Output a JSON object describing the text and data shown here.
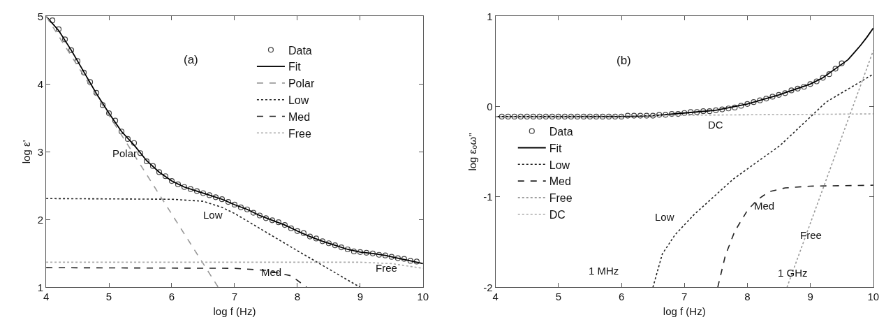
{
  "chart_data": [
    {
      "type": "line",
      "xlabel": "log f (Hz)",
      "ylabel": "log ε'",
      "xlim": [
        4,
        10
      ],
      "ylim": [
        1,
        5
      ],
      "xticks": [
        4,
        5,
        6,
        7,
        8,
        9,
        10
      ],
      "yticks": [
        1,
        2,
        3,
        4,
        5
      ],
      "legend": "top right",
      "series": [
        {
          "name": "Data",
          "type": "scatter",
          "marker": "circle",
          "color": "#444444",
          "x": [
            4.1,
            4.2,
            4.3,
            4.4,
            4.5,
            4.6,
            4.7,
            4.8,
            4.9,
            5.0,
            5.1,
            5.2,
            5.3,
            5.4,
            5.5,
            5.6,
            5.7,
            5.8,
            5.9,
            6.0,
            6.1,
            6.2,
            6.3,
            6.4,
            6.5,
            6.6,
            6.7,
            6.8,
            6.9,
            7.0,
            7.1,
            7.2,
            7.3,
            7.4,
            7.5,
            7.6,
            7.7,
            7.8,
            7.9,
            8.0,
            8.1,
            8.2,
            8.3,
            8.4,
            8.5,
            8.6,
            8.7,
            8.8,
            8.9,
            9.0,
            9.1,
            9.2,
            9.3,
            9.4,
            9.5,
            9.6,
            9.7,
            9.8,
            9.9
          ],
          "values": [
            4.94,
            4.81,
            4.66,
            4.5,
            4.34,
            4.17,
            4.03,
            3.87,
            3.69,
            3.57,
            3.46,
            3.3,
            3.19,
            3.13,
            2.98,
            2.86,
            2.79,
            2.7,
            2.64,
            2.57,
            2.52,
            2.48,
            2.45,
            2.42,
            2.39,
            2.36,
            2.33,
            2.3,
            2.26,
            2.22,
            2.18,
            2.15,
            2.1,
            2.06,
            2.02,
            1.99,
            1.96,
            1.92,
            1.87,
            1.83,
            1.8,
            1.75,
            1.72,
            1.68,
            1.65,
            1.62,
            1.59,
            1.56,
            1.53,
            1.52,
            1.51,
            1.5,
            1.48,
            1.47,
            1.45,
            1.43,
            1.42,
            1.39,
            1.38
          ]
        },
        {
          "name": "Fit",
          "line_style": "solid",
          "color": "#000000",
          "x": [
            4.0,
            4.2,
            4.4,
            4.6,
            4.8,
            5.0,
            5.2,
            5.4,
            5.6,
            5.8,
            6.0,
            6.2,
            6.4,
            6.6,
            6.8,
            7.0,
            7.2,
            7.4,
            7.6,
            7.8,
            8.0,
            8.2,
            8.4,
            8.6,
            8.8,
            9.0,
            9.2,
            9.4,
            9.6,
            9.8,
            10.0
          ],
          "values": [
            5.0,
            4.79,
            4.5,
            4.18,
            3.86,
            3.57,
            3.3,
            3.1,
            2.87,
            2.7,
            2.57,
            2.48,
            2.42,
            2.36,
            2.3,
            2.22,
            2.15,
            2.06,
            1.99,
            1.92,
            1.83,
            1.75,
            1.68,
            1.62,
            1.56,
            1.52,
            1.5,
            1.47,
            1.43,
            1.39,
            1.35
          ]
        },
        {
          "name": "Polar",
          "line_style": "dashed",
          "color": "#999999",
          "x": [
            4.0,
            6.74
          ],
          "values": [
            5.0,
            1.0
          ]
        },
        {
          "name": "Low",
          "line_style": "dotted",
          "color": "#222222",
          "x": [
            4.0,
            6.0,
            6.5,
            6.8,
            7.0,
            7.2,
            8.0,
            9.0
          ],
          "values": [
            2.31,
            2.3,
            2.27,
            2.18,
            2.09,
            1.98,
            1.54,
            1.0
          ]
        },
        {
          "name": "Med",
          "line_style": "dashed",
          "color": "#222222",
          "x": [
            4.0,
            7.0,
            7.5,
            7.9,
            8.15
          ],
          "values": [
            1.29,
            1.28,
            1.25,
            1.17,
            1.0
          ]
        },
        {
          "name": "Free",
          "line_style": "dotted",
          "color": "#aaaaaa",
          "x": [
            4.0,
            9.0,
            9.5,
            10.0
          ],
          "values": [
            1.37,
            1.37,
            1.35,
            1.28
          ]
        }
      ],
      "annotations": [
        "(a)",
        "Polar",
        "Low",
        "Med",
        "Free"
      ]
    },
    {
      "type": "line",
      "xlabel": "log f (Hz)",
      "ylabel": "log ε₀ω''",
      "xlim": [
        4,
        10
      ],
      "ylim": [
        -2,
        1
      ],
      "xticks": [
        4,
        5,
        6,
        7,
        8,
        9,
        10
      ],
      "yticks": [
        -2,
        -1,
        0,
        1
      ],
      "legend": "left",
      "series": [
        {
          "name": "Data",
          "type": "scatter",
          "marker": "circle",
          "color": "#444444",
          "x": [
            4.1,
            4.2,
            4.3,
            4.4,
            4.5,
            4.6,
            4.7,
            4.8,
            4.9,
            5.0,
            5.1,
            5.2,
            5.3,
            5.4,
            5.5,
            5.6,
            5.7,
            5.8,
            5.9,
            6.0,
            6.1,
            6.2,
            6.3,
            6.4,
            6.5,
            6.6,
            6.7,
            6.8,
            6.9,
            7.0,
            7.1,
            7.2,
            7.3,
            7.4,
            7.5,
            7.6,
            7.7,
            7.8,
            7.9,
            8.0,
            8.1,
            8.2,
            8.3,
            8.4,
            8.5,
            8.6,
            8.7,
            8.8,
            8.9,
            9.0,
            9.1,
            9.2,
            9.3,
            9.4,
            9.5
          ],
          "values": [
            -0.11,
            -0.11,
            -0.11,
            -0.11,
            -0.11,
            -0.11,
            -0.11,
            -0.11,
            -0.11,
            -0.11,
            -0.11,
            -0.11,
            -0.11,
            -0.11,
            -0.11,
            -0.11,
            -0.11,
            -0.11,
            -0.11,
            -0.11,
            -0.1,
            -0.1,
            -0.1,
            -0.1,
            -0.1,
            -0.09,
            -0.09,
            -0.08,
            -0.08,
            -0.07,
            -0.06,
            -0.06,
            -0.05,
            -0.05,
            -0.04,
            -0.03,
            -0.02,
            -0.01,
            0.01,
            0.03,
            0.05,
            0.07,
            0.09,
            0.11,
            0.13,
            0.15,
            0.18,
            0.2,
            0.22,
            0.25,
            0.28,
            0.32,
            0.36,
            0.42,
            0.48
          ]
        },
        {
          "name": "Fit",
          "line_style": "solid",
          "color": "#000000",
          "x": [
            4.0,
            6.0,
            6.5,
            7.0,
            7.5,
            8.0,
            8.5,
            9.0,
            9.2,
            9.4,
            9.6,
            9.7,
            9.8,
            9.9,
            10.0
          ],
          "values": [
            -0.11,
            -0.11,
            -0.1,
            -0.07,
            -0.04,
            0.03,
            0.13,
            0.25,
            0.32,
            0.42,
            0.52,
            0.6,
            0.68,
            0.77,
            0.87
          ]
        },
        {
          "name": "Low",
          "line_style": "dotted",
          "color": "#222222",
          "x": [
            6.5,
            6.65,
            6.85,
            7.16,
            7.78,
            8.52,
            9.25,
            10.0
          ],
          "values": [
            -2.0,
            -1.63,
            -1.42,
            -1.19,
            -0.8,
            -0.43,
            0.05,
            0.36
          ]
        },
        {
          "name": "Med",
          "line_style": "dashed",
          "color": "#222222",
          "x": [
            7.53,
            7.65,
            7.8,
            8.0,
            8.16,
            8.35,
            8.6,
            9.0,
            10.0
          ],
          "values": [
            -2.0,
            -1.65,
            -1.38,
            -1.15,
            -1.03,
            -0.94,
            -0.9,
            -0.88,
            -0.87
          ]
        },
        {
          "name": "Free",
          "line_style": "dotted",
          "color": "#999999",
          "x": [
            8.63,
            10.0
          ],
          "values": [
            -2.0,
            0.62
          ]
        },
        {
          "name": "DC",
          "line_style": "dotted",
          "color": "#aaaaaa",
          "x": [
            4.0,
            10.0
          ],
          "values": [
            -0.11,
            -0.08
          ]
        }
      ],
      "annotations": [
        "(b)",
        "DC",
        "Low",
        "1 MHz",
        "Med",
        "Free",
        "1 GHz"
      ]
    }
  ]
}
